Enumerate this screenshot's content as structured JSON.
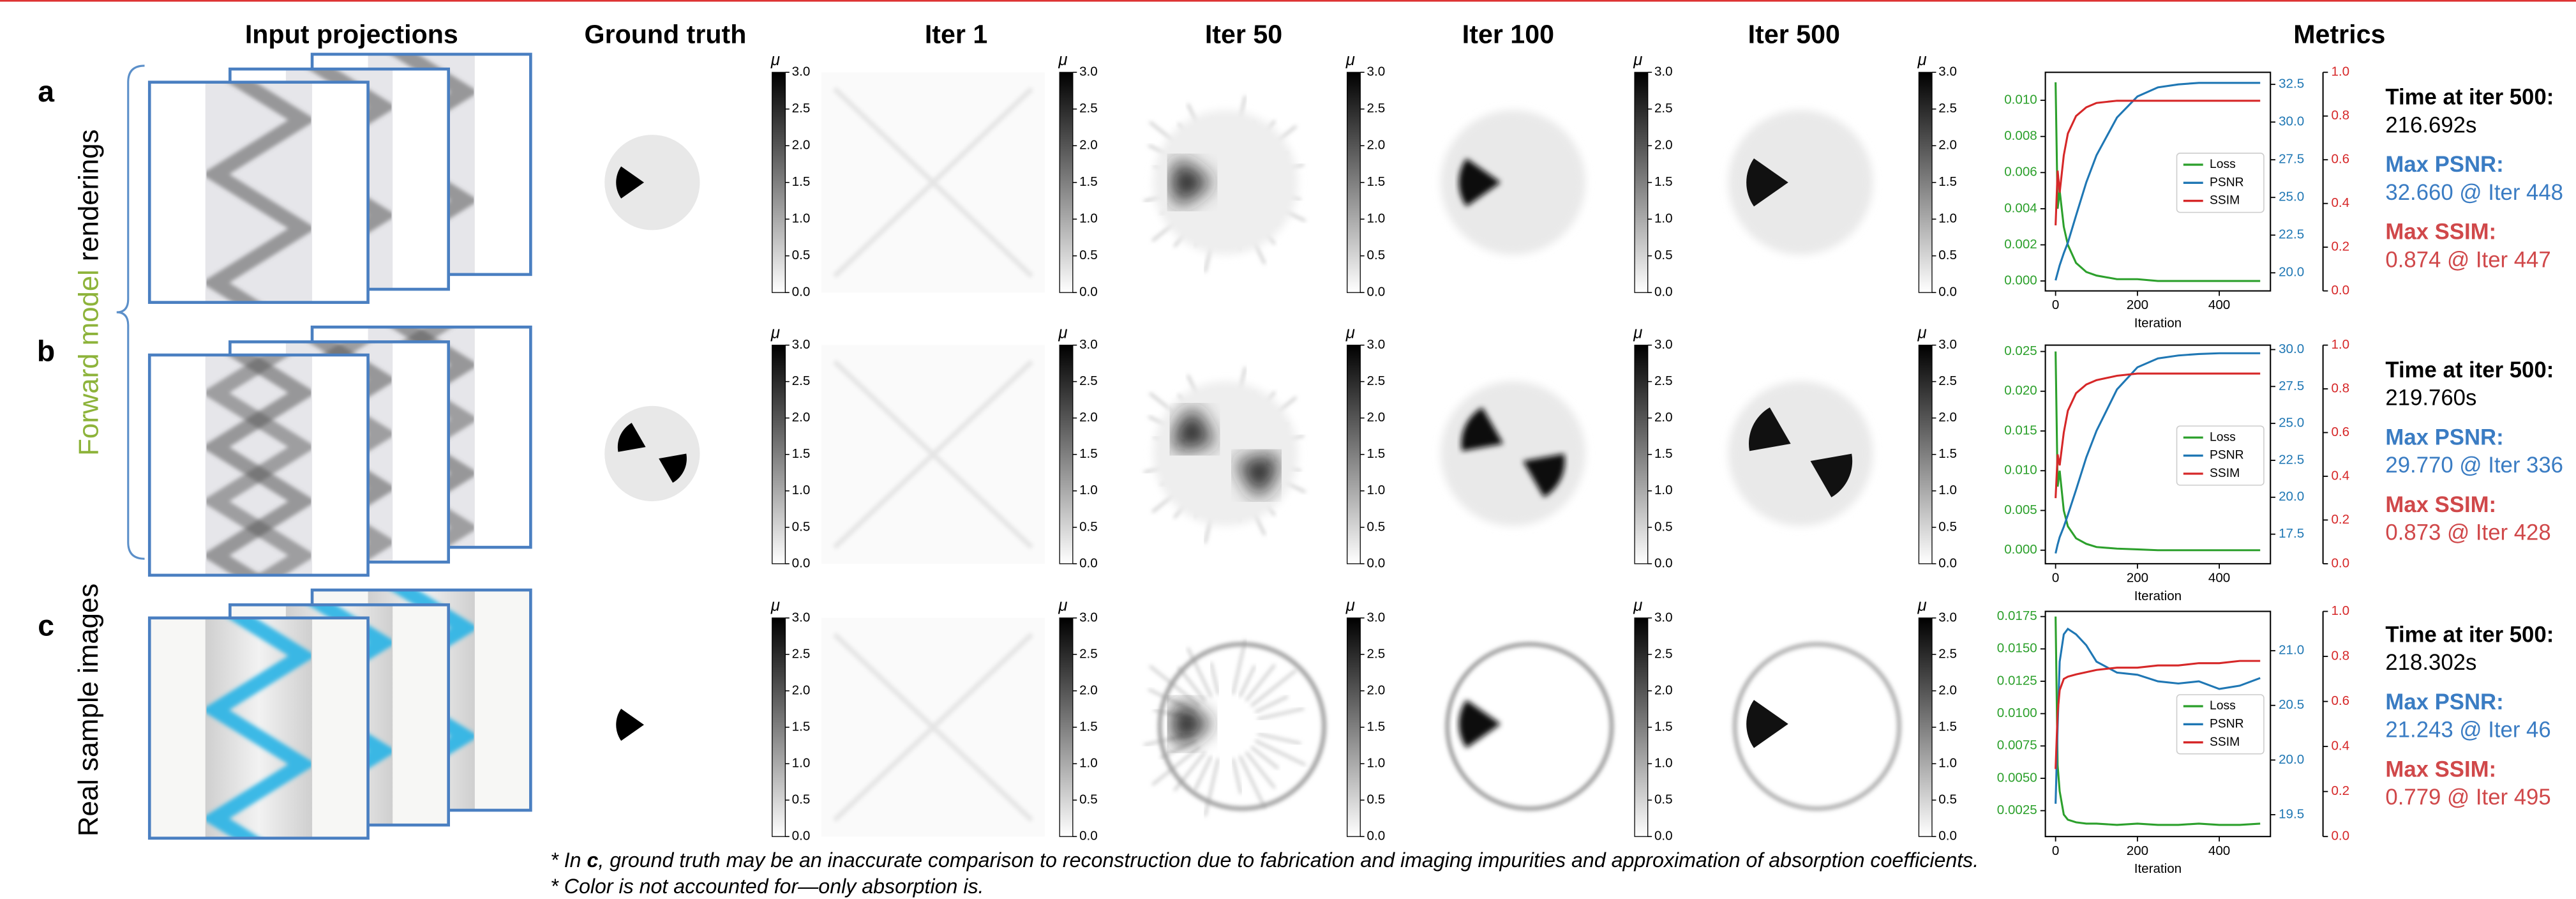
{
  "header": {
    "columns": [
      "Input projections",
      "Ground truth",
      "Iter 1",
      "Iter 50",
      "Iter 100",
      "Iter 500",
      "Metrics"
    ]
  },
  "rows": [
    {
      "label": "a",
      "time_label": "Time at iter 500:",
      "time": "216.692s",
      "psnr_label": "Max PSNR:",
      "psnr": "32.660 @ Iter 448",
      "ssim_label": "Max SSIM:",
      "ssim": "0.874 @ Iter 447"
    },
    {
      "label": "b",
      "time_label": "Time at iter 500:",
      "time": "219.760s",
      "psnr_label": "Max PSNR:",
      "psnr": "29.770 @ Iter 336",
      "ssim_label": "Max SSIM:",
      "ssim": "0.873 @ Iter 428"
    },
    {
      "label": "c",
      "time_label": "Time at iter 500:",
      "time": "218.302s",
      "psnr_label": "Max PSNR:",
      "psnr": "21.243 @ Iter 46",
      "ssim_label": "Max SSIM:",
      "ssim": "0.779 @ Iter 495"
    }
  ],
  "side_labels": {
    "forward": [
      "Forward model",
      "renderings"
    ],
    "real": "Real sample images"
  },
  "colorbar": {
    "label": "μ",
    "lim": [
      0,
      3
    ],
    "ticks": [
      {
        "value": 0,
        "label": "0.0"
      },
      0.5,
      {
        "value": 1,
        "label": "1.0"
      },
      1.5,
      {
        "value": 2,
        "label": "2.0"
      },
      2.5,
      {
        "value": 3,
        "label": "3.0"
      }
    ]
  },
  "footnotes": [
    [
      "* In ",
      "c",
      ", ground truth may be an inaccurate comparison to reconstruction due to fabrication and imaging impurities and approximation of absorption coefficients."
    ],
    [
      "* Color is not accounted for—only absorption is."
    ]
  ],
  "chart_data": [
    {
      "type": "line",
      "xlabel": "Iteration",
      "legend": "center right",
      "x": [
        0,
        5,
        10,
        20,
        30,
        50,
        75,
        100,
        150,
        200,
        250,
        300,
        350,
        400,
        450,
        500
      ],
      "xlim": [
        -25,
        525
      ],
      "xticks": [
        0,
        200,
        400
      ],
      "ylim": [
        -0.00055,
        0.01155
      ],
      "yticks": [
        {
          "value": 0,
          "label": "0.000"
        },
        0.002,
        0.004,
        0.006,
        0.008,
        {
          "value": 0.01,
          "label": "0.010"
        }
      ],
      "y2lim": [
        18.8,
        33.3
      ],
      "y2ticks": [
        {
          "value": 20,
          "label": "20.0"
        },
        22.5,
        {
          "value": 25,
          "label": "25.0"
        },
        27.5,
        {
          "value": 30,
          "label": "30.0"
        },
        32.5
      ],
      "y3lim": [
        0,
        1
      ],
      "y3ticks": [
        {
          "value": 0,
          "label": "0.0"
        },
        0.2,
        0.4,
        0.6,
        0.8,
        {
          "value": 1,
          "label": "1.0"
        }
      ],
      "series": [
        {
          "name": "Loss",
          "color": "#2ca02c",
          "axis": "y",
          "values": [
            0.011,
            0.004,
            0.005,
            0.003,
            0.002,
            0.001,
            0.0005,
            0.0003,
            0.0001,
            0.0001,
            0,
            0,
            0,
            0,
            0,
            0
          ]
        },
        {
          "name": "PSNR",
          "color": "#1f77b4",
          "axis": "y2",
          "values": [
            19.5,
            20.0,
            20.5,
            21.3,
            22.0,
            23.8,
            26.0,
            27.8,
            30.3,
            31.7,
            32.3,
            32.5,
            32.6,
            32.6,
            32.6,
            32.6
          ]
        },
        {
          "name": "SSIM",
          "color": "#d62728",
          "axis": "y3",
          "values": [
            0.3,
            0.55,
            0.45,
            0.62,
            0.72,
            0.8,
            0.84,
            0.86,
            0.87,
            0.87,
            0.87,
            0.87,
            0.87,
            0.87,
            0.87,
            0.87
          ]
        }
      ]
    },
    {
      "type": "line",
      "xlabel": "Iteration",
      "legend": "center right",
      "x": [
        0,
        5,
        10,
        20,
        30,
        50,
        75,
        100,
        150,
        200,
        250,
        300,
        350,
        400,
        450,
        500
      ],
      "xlim": [
        -25,
        525
      ],
      "xticks": [
        0,
        200,
        400
      ],
      "ylim": [
        -0.0017,
        0.0258
      ],
      "yticks": [
        {
          "value": 0,
          "label": "0.000"
        },
        0.005,
        {
          "value": 0.01,
          "label": "0.010"
        },
        0.015,
        {
          "value": 0.02,
          "label": "0.020"
        },
        0.025
      ],
      "y2lim": [
        15.5,
        30.3
      ],
      "y2ticks": [
        17.5,
        {
          "value": 20,
          "label": "20.0"
        },
        22.5,
        {
          "value": 25,
          "label": "25.0"
        },
        27.5,
        {
          "value": 30,
          "label": "30.0"
        }
      ],
      "y3lim": [
        0,
        1
      ],
      "y3ticks": [
        {
          "value": 0,
          "label": "0.0"
        },
        0.2,
        0.4,
        0.6,
        0.8,
        {
          "value": 1,
          "label": "1.0"
        }
      ],
      "series": [
        {
          "name": "Loss",
          "color": "#2ca02c",
          "axis": "y",
          "values": [
            0.025,
            0.008,
            0.01,
            0.005,
            0.003,
            0.0015,
            0.0008,
            0.0004,
            0.0002,
            0.0001,
            0,
            0,
            0,
            0,
            0,
            0
          ]
        },
        {
          "name": "PSNR",
          "color": "#1f77b4",
          "axis": "y2",
          "values": [
            16.2,
            16.8,
            17.3,
            18.0,
            18.8,
            20.5,
            22.7,
            24.5,
            27.3,
            28.8,
            29.4,
            29.6,
            29.7,
            29.75,
            29.75,
            29.75
          ]
        },
        {
          "name": "SSIM",
          "color": "#d62728",
          "axis": "y3",
          "values": [
            0.3,
            0.5,
            0.45,
            0.6,
            0.7,
            0.78,
            0.82,
            0.84,
            0.86,
            0.87,
            0.87,
            0.87,
            0.87,
            0.87,
            0.87,
            0.87
          ]
        }
      ]
    },
    {
      "type": "line",
      "xlabel": "Iteration",
      "legend": "center right",
      "x": [
        0,
        5,
        10,
        20,
        30,
        50,
        75,
        100,
        150,
        200,
        250,
        300,
        350,
        400,
        450,
        500
      ],
      "xlim": [
        -25,
        525
      ],
      "xticks": [
        0,
        200,
        400
      ],
      "ylim": [
        0.0005,
        0.0179
      ],
      "yticks": [
        0.0025,
        {
          "value": 0.005,
          "label": "0.0050"
        },
        0.0075,
        {
          "value": 0.01,
          "label": "0.0100"
        },
        0.0125,
        {
          "value": 0.015,
          "label": "0.0150"
        },
        0.0175
      ],
      "y2lim": [
        19.3,
        21.36
      ],
      "y2ticks": [
        19.5,
        {
          "value": 20,
          "label": "20.0"
        },
        20.5,
        {
          "value": 21,
          "label": "21.0"
        }
      ],
      "y3lim": [
        0,
        1
      ],
      "y3ticks": [
        {
          "value": 0,
          "label": "0.0"
        },
        0.2,
        0.4,
        0.6,
        0.8,
        {
          "value": 1,
          "label": "1.0"
        }
      ],
      "series": [
        {
          "name": "Loss",
          "color": "#2ca02c",
          "axis": "y",
          "values": [
            0.0175,
            0.006,
            0.004,
            0.0022,
            0.0018,
            0.0016,
            0.0015,
            0.0015,
            0.0014,
            0.0015,
            0.0014,
            0.0014,
            0.0015,
            0.0014,
            0.0014,
            0.0015
          ]
        },
        {
          "name": "PSNR",
          "color": "#1f77b4",
          "axis": "y2",
          "values": [
            19.6,
            20.3,
            20.9,
            21.15,
            21.2,
            21.15,
            21.05,
            20.9,
            20.8,
            20.78,
            20.72,
            20.7,
            20.72,
            20.65,
            20.68,
            20.75
          ]
        },
        {
          "name": "SSIM",
          "color": "#d62728",
          "axis": "y3",
          "values": [
            0.3,
            0.55,
            0.65,
            0.7,
            0.71,
            0.72,
            0.73,
            0.74,
            0.75,
            0.75,
            0.76,
            0.76,
            0.77,
            0.77,
            0.78,
            0.78
          ]
        }
      ]
    }
  ]
}
